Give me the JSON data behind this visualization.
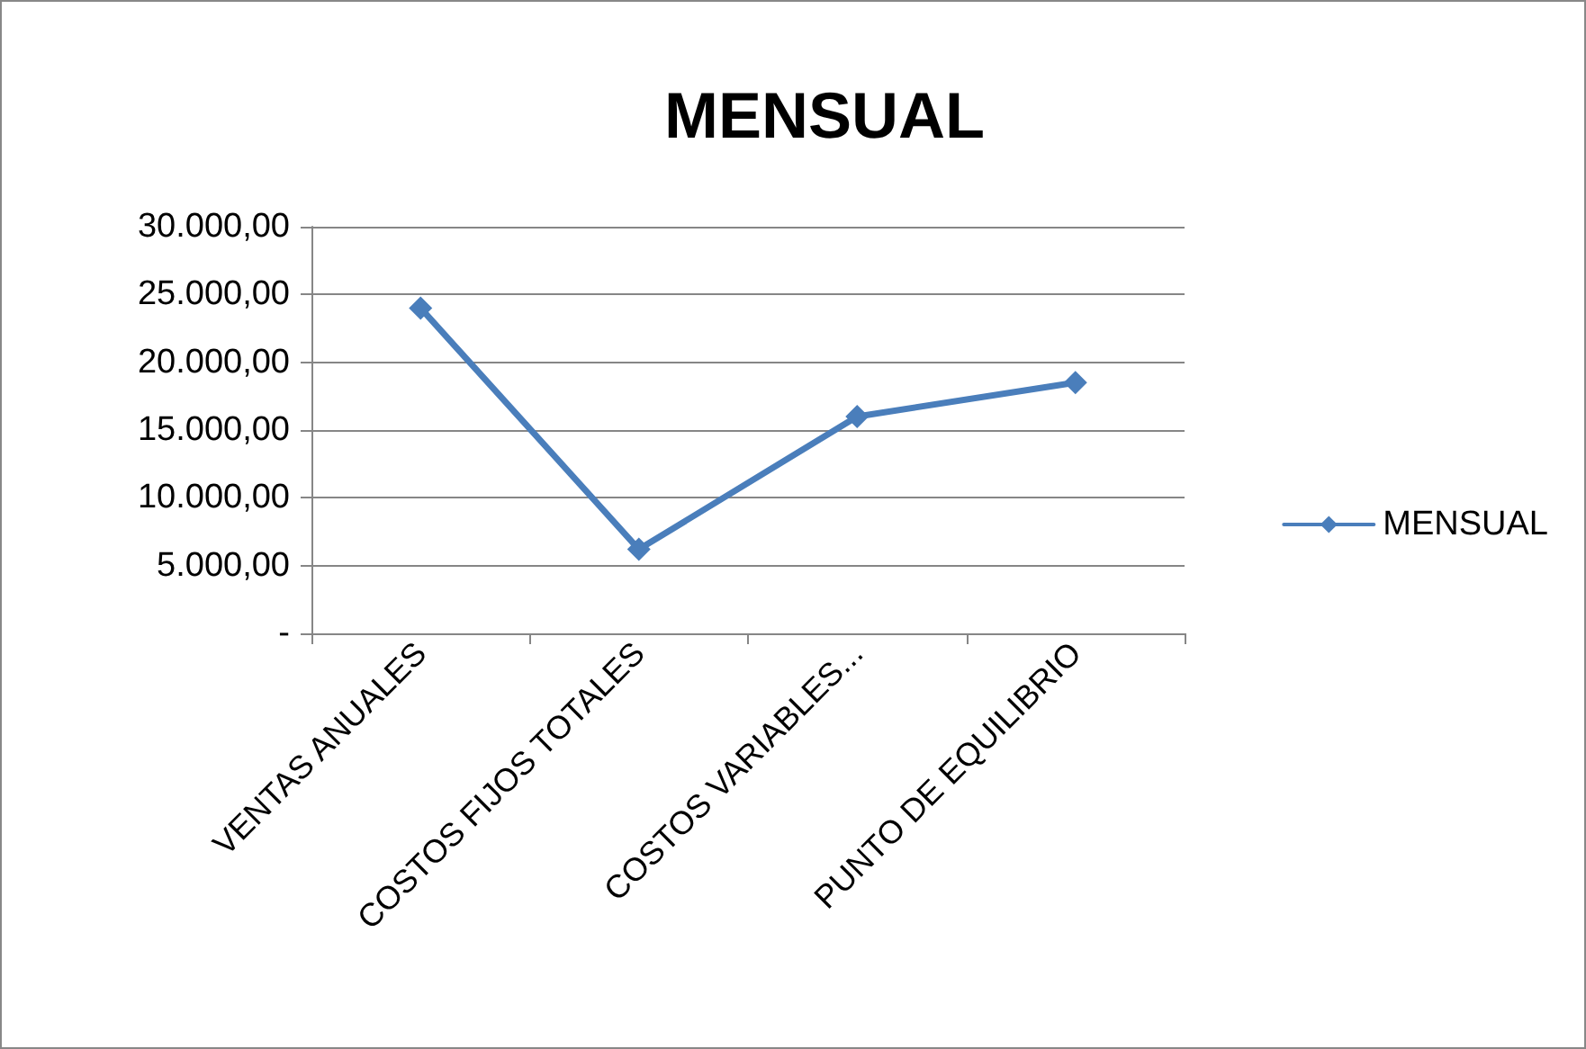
{
  "chart_data": {
    "type": "line",
    "title": "MENSUAL",
    "categories": [
      "VENTAS ANUALES",
      "COSTOS FIJOS TOTALES",
      "COSTOS VARIABLES...",
      "PUNTO DE EQUILIBRIO"
    ],
    "series": [
      {
        "name": "MENSUAL",
        "color": "#4a7ebb",
        "values": [
          24000,
          6200,
          16000,
          18500
        ]
      }
    ],
    "ylim": [
      0,
      30000
    ],
    "yticks": [
      {
        "value": 0,
        "label": "-"
      },
      {
        "value": 5000,
        "label": "5.000,00"
      },
      {
        "value": 10000,
        "label": "10.000,00"
      },
      {
        "value": 15000,
        "label": "15.000,00"
      },
      {
        "value": 20000,
        "label": "20.000,00"
      },
      {
        "value": 25000,
        "label": "25.000,00"
      },
      {
        "value": 30000,
        "label": "30.000,00"
      }
    ],
    "grid": "y",
    "legend": "right",
    "marker": "diamond",
    "line_style": "solid"
  }
}
